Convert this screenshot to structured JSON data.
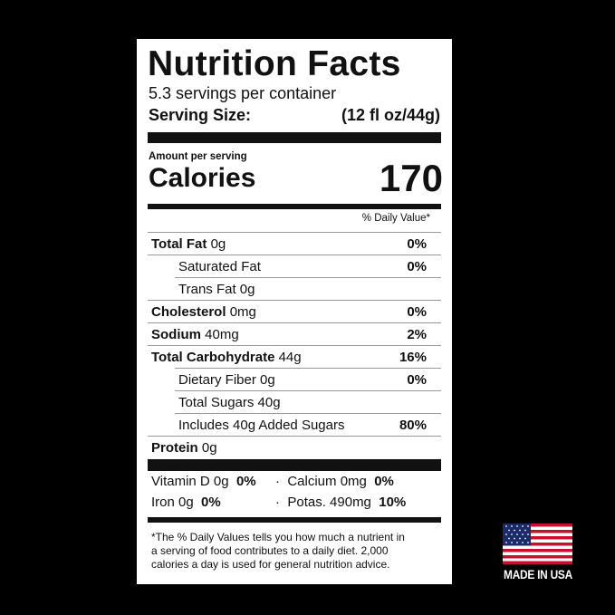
{
  "title": "Nutrition Facts",
  "servings": "5.3 servings per container",
  "serving_size_label": "Serving Size:",
  "serving_size_value": "(12 fl oz/44g)",
  "amount_per_serving": "Amount per serving",
  "calories_label": "Calories",
  "calories_value": "170",
  "daily_value_header": "% Daily Value*",
  "nutrients": [
    {
      "name": "Total Fat",
      "amount": "0g",
      "dv": "0%"
    },
    {
      "name": "Saturated Fat",
      "amount": "",
      "dv": "0%"
    },
    {
      "name": "Trans Fat 0g",
      "amount": "",
      "dv": ""
    },
    {
      "name": "Cholesterol",
      "amount": "0mg",
      "dv": "0%"
    },
    {
      "name": "Sodium",
      "amount": "40mg",
      "dv": "2%"
    },
    {
      "name": "Total Carbohydrate",
      "amount": "44g",
      "dv": "16%"
    },
    {
      "name": "Dietary Fiber 0g",
      "amount": "",
      "dv": "0%"
    },
    {
      "name": "Total Sugars 40g",
      "amount": "",
      "dv": ""
    },
    {
      "name": "Includes 40g Added Sugars",
      "amount": "",
      "dv": "80%"
    },
    {
      "name": "Protein",
      "amount": "0g",
      "dv": ""
    }
  ],
  "vitamins": {
    "vitd": "Vitamin D 0g",
    "vitd_dv": "0%",
    "calcium": "Calcium 0mg",
    "calcium_dv": "0%",
    "iron": "Iron 0g",
    "iron_dv": "0%",
    "potas": "Potas. 490mg",
    "potas_dv": "10%",
    "sep": "·"
  },
  "footnote": [
    "*The % Daily Values tells you how much a nutrient in",
    "a serving of food contributes to a daily diet. 2,000",
    "calories a day is used for general nutrition advice."
  ],
  "badge": {
    "text": "MADE IN USA",
    "flag_red": "#c8102e",
    "flag_blue": "#1b2a6b"
  }
}
